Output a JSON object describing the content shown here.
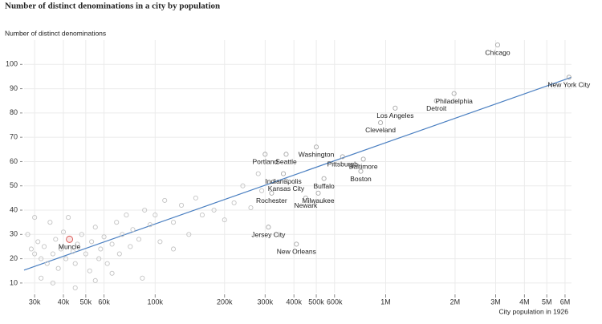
{
  "chart_data": {
    "type": "scatter",
    "title": "Number of distinct denominations in a city by population",
    "y_label": "Number of distinct denominations",
    "x_label": "City population in 1926",
    "log_x": true,
    "grid": true,
    "xlim": [
      27000,
      6400000
    ],
    "ylim": [
      6,
      110
    ],
    "xticks": [
      {
        "value": 30000,
        "label": "30k"
      },
      {
        "value": 40000,
        "label": "40k"
      },
      {
        "value": 50000,
        "label": "50k"
      },
      {
        "value": 60000,
        "label": "60k"
      },
      {
        "value": 100000,
        "label": "100k"
      },
      {
        "value": 200000,
        "label": "200k"
      },
      {
        "value": 300000,
        "label": "300k"
      },
      {
        "value": 400000,
        "label": "400k"
      },
      {
        "value": 500000,
        "label": "500k"
      },
      {
        "value": 600000,
        "label": "600k"
      },
      {
        "value": 1000000,
        "label": "1M"
      },
      {
        "value": 2000000,
        "label": "2M"
      },
      {
        "value": 3000000,
        "label": "3M"
      },
      {
        "value": 4000000,
        "label": "4M"
      },
      {
        "value": 5000000,
        "label": "5M"
      },
      {
        "value": 6000000,
        "label": "6M"
      }
    ],
    "yticks": [
      10,
      20,
      30,
      40,
      50,
      60,
      70,
      80,
      90,
      100
    ],
    "series": [
      {
        "color": "#c4c4c4",
        "x": [
          28000,
          29000,
          30000,
          31000,
          32000,
          33000,
          34000,
          35000,
          36000,
          37000,
          38000,
          39000,
          40000,
          41000,
          44000,
          45000,
          46000,
          48000,
          50000,
          52000,
          53000,
          55000,
          57000,
          58000,
          60000,
          62000,
          65000,
          68000,
          70000,
          72000,
          75000,
          78000,
          80000,
          85000,
          90000,
          95000,
          100000,
          105000,
          110000,
          120000,
          130000,
          140000,
          150000,
          160000,
          180000,
          200000,
          220000,
          240000,
          260000,
          280000,
          290000,
          32000,
          36000,
          45000,
          55000,
          65000,
          30000,
          42000,
          88000,
          120000
        ],
        "values": [
          30,
          24,
          22,
          27,
          20,
          25,
          18,
          35,
          22,
          28,
          16,
          24,
          31,
          20,
          23,
          18,
          26,
          30,
          22,
          15,
          27,
          33,
          20,
          24,
          29,
          18,
          26,
          35,
          22,
          30,
          38,
          25,
          32,
          28,
          40,
          34,
          38,
          27,
          44,
          35,
          42,
          30,
          45,
          38,
          40,
          36,
          43,
          50,
          41,
          55,
          48,
          12,
          10,
          8,
          11,
          14,
          37,
          37,
          12,
          24
        ]
      },
      {
        "color": "#a8a8a8",
        "labels": [
          "Chicago",
          "New York City",
          "Philadelphia",
          "Detroit",
          "Los Angeles",
          "Cleveland",
          "Washington",
          "Pittsburgh",
          "Baltimore",
          "Boston",
          "Portland",
          "Seattle",
          "Indianapolis",
          "Kansas City",
          "Buffalo",
          "Milwaukee",
          "Rochester",
          "Newark",
          "Jersey City",
          "New Orleans"
        ],
        "x": [
          3060000,
          6240000,
          1980000,
          1660000,
          1100000,
          950000,
          500000,
          650000,
          800000,
          780000,
          300000,
          370000,
          360000,
          370000,
          540000,
          510000,
          320000,
          450000,
          310000,
          410000
        ],
        "values": [
          108,
          94.7,
          88,
          85,
          82,
          76,
          66,
          62,
          61,
          56,
          63,
          63,
          55,
          52,
          53,
          47,
          47,
          45,
          33,
          26
        ]
      },
      {
        "color": "#d9534f",
        "labels": [
          "Muncie"
        ],
        "x": [
          42500
        ],
        "values": [
          28
        ]
      }
    ],
    "trend": {
      "color": "#4a7fc1",
      "x": [
        27000,
        6400000
      ],
      "values": [
        15.3,
        94.7
      ]
    }
  }
}
